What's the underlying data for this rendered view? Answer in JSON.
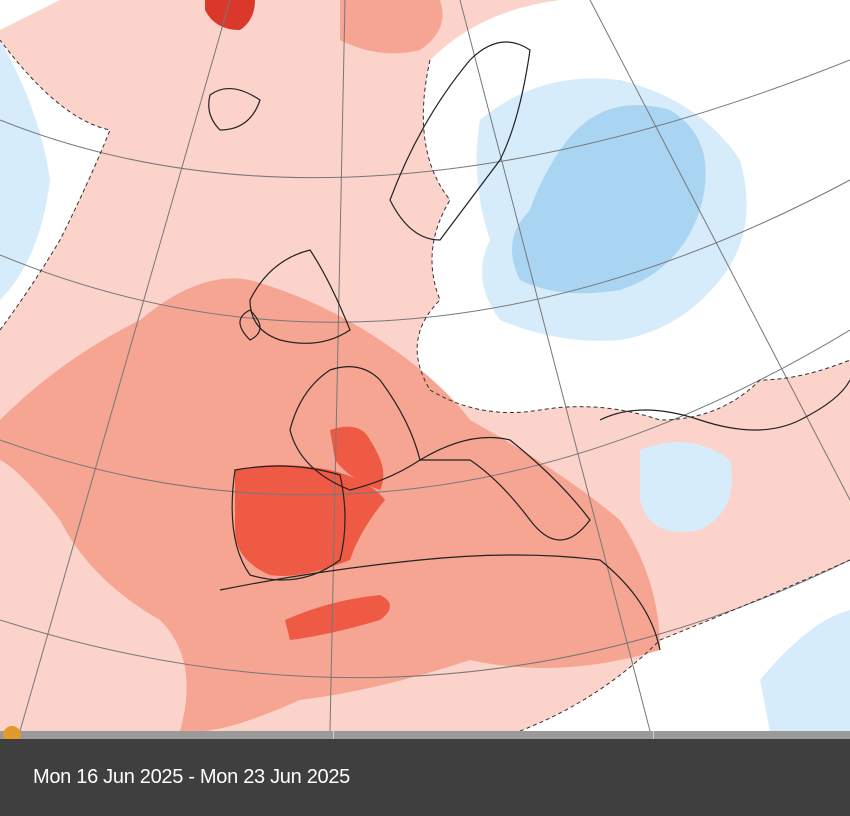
{
  "map": {
    "colors": {
      "light_warm": "#fbd3ca",
      "warm": "#f5a592",
      "hot": "#ef5a45",
      "very_hot": "#d9382a",
      "neutral": "#ffffff",
      "light_cool": "#d6ecfa",
      "cool": "#a9d5f3"
    }
  },
  "timeline": {
    "handle_position": 0,
    "handle_color": "#e39a2c",
    "period_label": "Mon 16 Jun 2025 - Mon 23 Jun 2025"
  }
}
